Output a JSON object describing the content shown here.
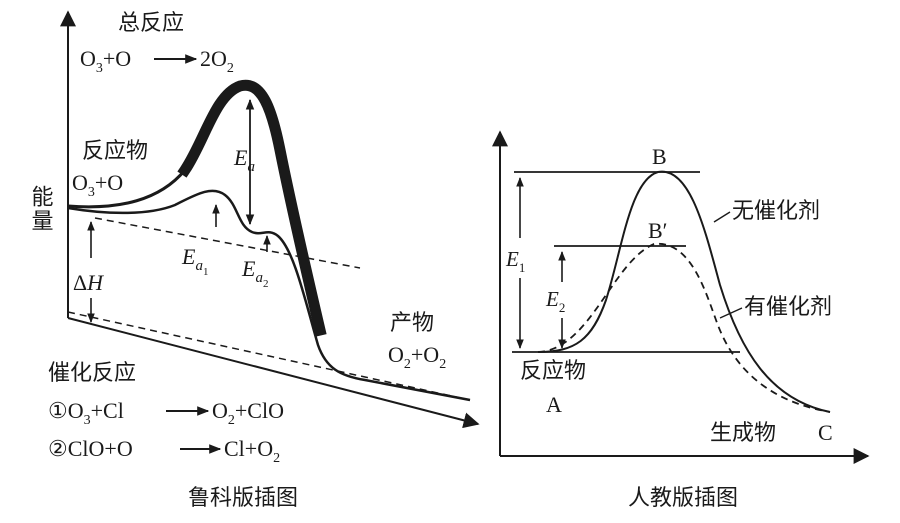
{
  "left": {
    "y_axis_label": "能量",
    "overall_title": "总反应",
    "overall_eq": {
      "a": "O",
      "a_sub": "3",
      "b": "+O",
      "c": "2O",
      "c_sub": "2"
    },
    "reactant_label": "反应物",
    "reactant_formula": {
      "a": "O",
      "a_sub": "3",
      "b": "+O"
    },
    "ea": {
      "main": "E",
      "sub": "a"
    },
    "ea1": {
      "main": "E",
      "sub": "a",
      "subsub": "1"
    },
    "ea2": {
      "main": "E",
      "sub": "a",
      "subsub": "2"
    },
    "delta_h": {
      "delta": "Δ",
      "h": "H"
    },
    "product_label": "产物",
    "product_formula": {
      "a": "O",
      "a_sub": "2",
      "b": "+O",
      "b_sub": "2"
    },
    "catalytic_title": "催化反应",
    "step1": {
      "num": "①",
      "a": "O",
      "a_sub": "3",
      "b": "+Cl",
      "c": "O",
      "c_sub": "2",
      "d": "+ClO"
    },
    "step2": {
      "num": "②",
      "a": "ClO+O",
      "b": "Cl+O",
      "b_sub": "2"
    },
    "caption": "鲁科版插图"
  },
  "right": {
    "peak_b": "B",
    "peak_b_prime": "B′",
    "uncatalyzed_label": "无催化剂",
    "catalyzed_label": "有催化剂",
    "e1": {
      "main": "E",
      "sub": "1"
    },
    "e2": {
      "main": "E",
      "sub": "2"
    },
    "reactant_label": "反应物",
    "point_a": "A",
    "product_label": "生成物",
    "point_c": "C",
    "caption": "人教版插图"
  }
}
